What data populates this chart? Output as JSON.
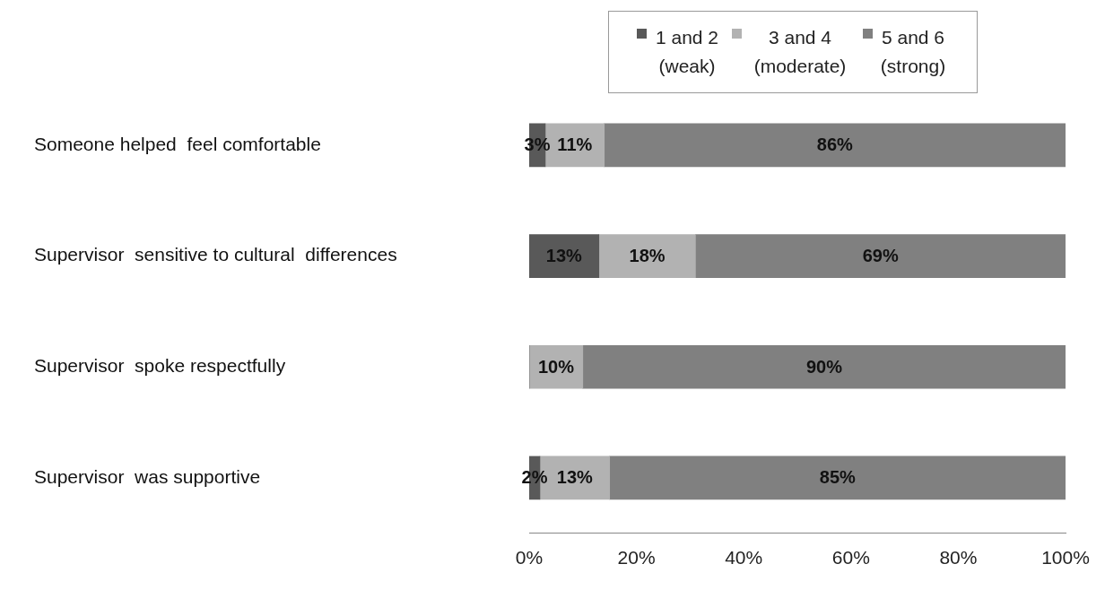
{
  "chart_data": {
    "type": "bar",
    "orientation": "horizontal",
    "stacked": true,
    "categories": [
      "Someone helped  feel comfortable",
      "Supervisor  sensitive to cultural  differences",
      "Supervisor  spoke respectfully",
      "Supervisor  was supportive"
    ],
    "series": [
      {
        "name": "1 and 2 (weak)",
        "color": "#595959",
        "values": [
          3,
          13,
          0,
          2
        ],
        "value_labels": [
          "3%",
          "13%",
          null,
          "2%"
        ]
      },
      {
        "name": "3 and 4 (moderate)",
        "color": "#b2b2b2",
        "values": [
          11,
          18,
          10,
          13
        ],
        "value_labels": [
          "11%",
          "18%",
          "10%",
          "13%"
        ]
      },
      {
        "name": "5 and 6 (strong)",
        "color": "#808080",
        "values": [
          86,
          69,
          90,
          85
        ],
        "value_labels": [
          "86%",
          "69%",
          "90%",
          "85%"
        ]
      }
    ],
    "xlim": [
      0,
      100
    ],
    "xticks": [
      {
        "value": 0,
        "label": "0%"
      },
      {
        "value": 20,
        "label": "20%"
      },
      {
        "value": 40,
        "label": "40%"
      },
      {
        "value": 60,
        "label": "60%"
      },
      {
        "value": 80,
        "label": "80%"
      },
      {
        "value": 100,
        "label": "100%"
      }
    ],
    "grid": false,
    "legend": "top right"
  }
}
